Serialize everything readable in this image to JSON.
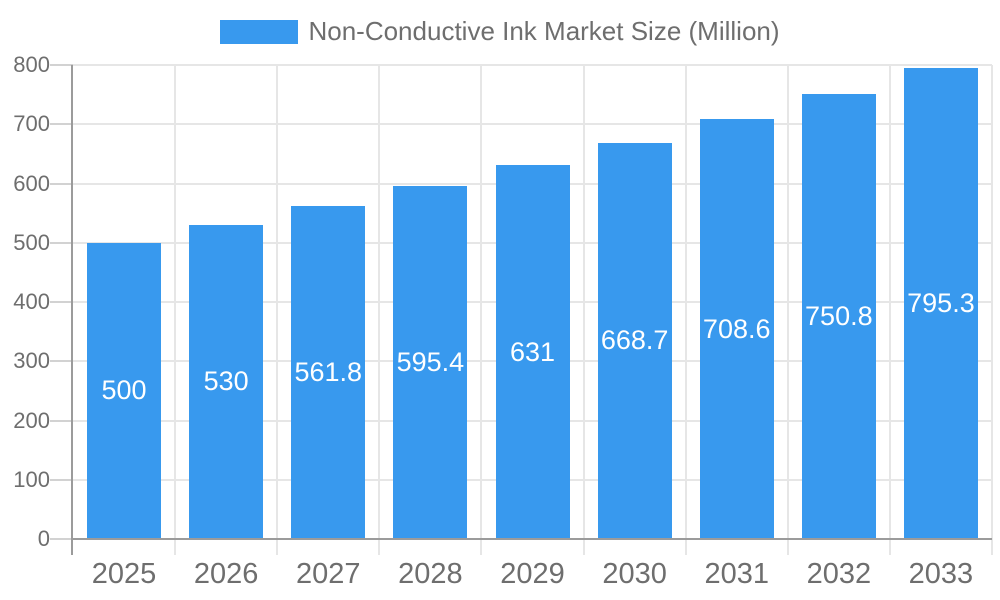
{
  "chart_data": {
    "type": "bar",
    "title": "",
    "legend": {
      "position": "top",
      "label": "Non-Conductive Ink Market Size (Million)"
    },
    "categories": [
      "2025",
      "2026",
      "2027",
      "2028",
      "2029",
      "2030",
      "2031",
      "2032",
      "2033"
    ],
    "series": [
      {
        "name": "Non-Conductive Ink Market Size (Million)",
        "values": [
          500,
          530,
          561.8,
          595.4,
          631,
          668.7,
          708.6,
          750.8,
          795.3
        ]
      }
    ],
    "xlabel": "",
    "ylabel": "",
    "ylim": [
      0,
      800
    ],
    "yticks": [
      0,
      100,
      200,
      300,
      400,
      500,
      600,
      700,
      800
    ],
    "grid": true,
    "value_labels_shown": true,
    "colors": {
      "bar": "#3899EE",
      "grid": "#e6e6e6",
      "tick": "#d2d2d2",
      "axis": "#9b9b9b",
      "text": "#6e6e6e",
      "value_label_text": "#ffffff",
      "background": "#ffffff"
    }
  }
}
